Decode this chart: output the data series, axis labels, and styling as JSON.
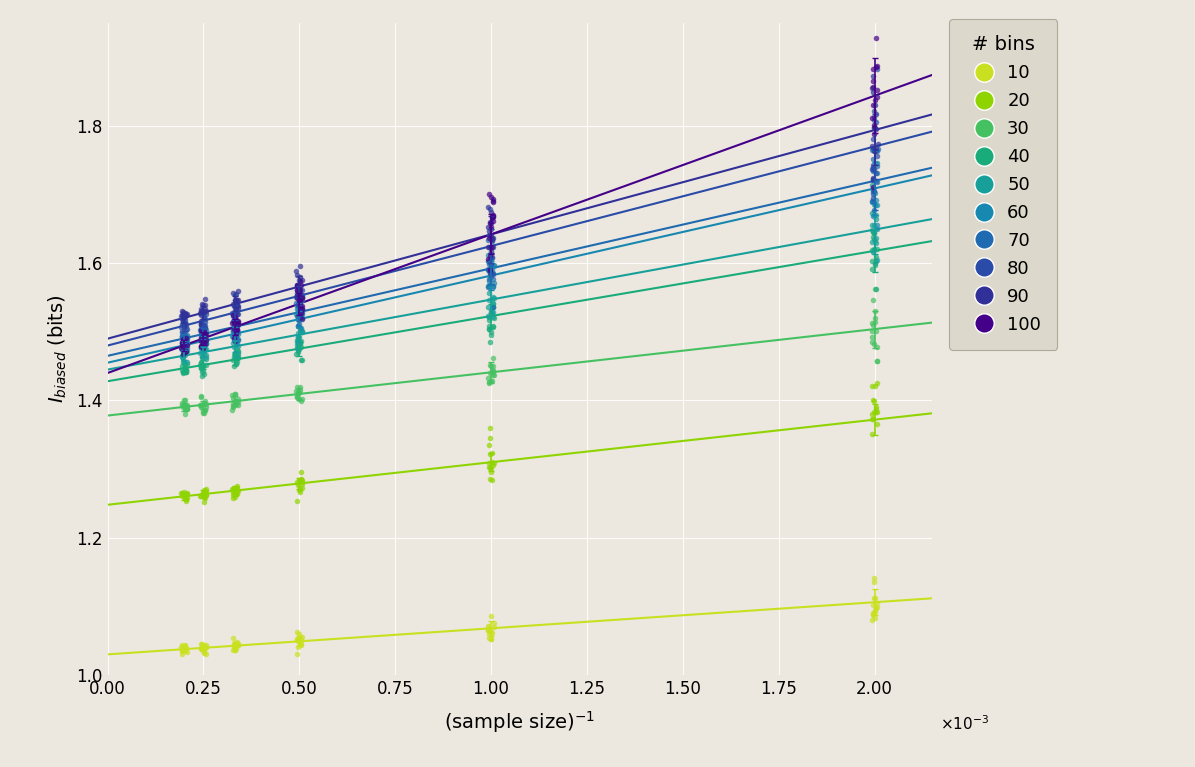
{
  "bin_counts": [
    10,
    20,
    30,
    40,
    50,
    60,
    70,
    80,
    90,
    100
  ],
  "colors": [
    "#c9e020",
    "#8fd400",
    "#46c162",
    "#1aab7a",
    "#17a09a",
    "#1788b0",
    "#1f6ab0",
    "#2a4ca8",
    "#303098",
    "#440088"
  ],
  "line_params": [
    [
      1.03,
      38.0
    ],
    [
      1.248,
      62.0
    ],
    [
      1.378,
      63.0
    ],
    [
      1.428,
      95.0
    ],
    [
      1.445,
      102.0
    ],
    [
      1.455,
      127.0
    ],
    [
      1.465,
      127.5
    ],
    [
      1.48,
      145.0
    ],
    [
      1.49,
      152.0
    ],
    [
      1.44,
      202.0
    ]
  ],
  "sample_sizes": [
    500,
    1000,
    2000,
    3000,
    4000,
    5000
  ],
  "n_bootstrap": 15,
  "xlabel": "(sample size)$^{-1}$",
  "ylabel": "$I_{biased}$ (bits)",
  "xlim": [
    0.0,
    0.00215
  ],
  "ylim": [
    1.0,
    1.95
  ],
  "bg_color": "#ede8df",
  "legend_title": "# bins",
  "legend_bg": "#ddd8cc",
  "marker_size": 5,
  "line_width": 1.5,
  "grid_color": "#ffffff",
  "grid_alpha": 0.9,
  "grid_lw": 0.8
}
